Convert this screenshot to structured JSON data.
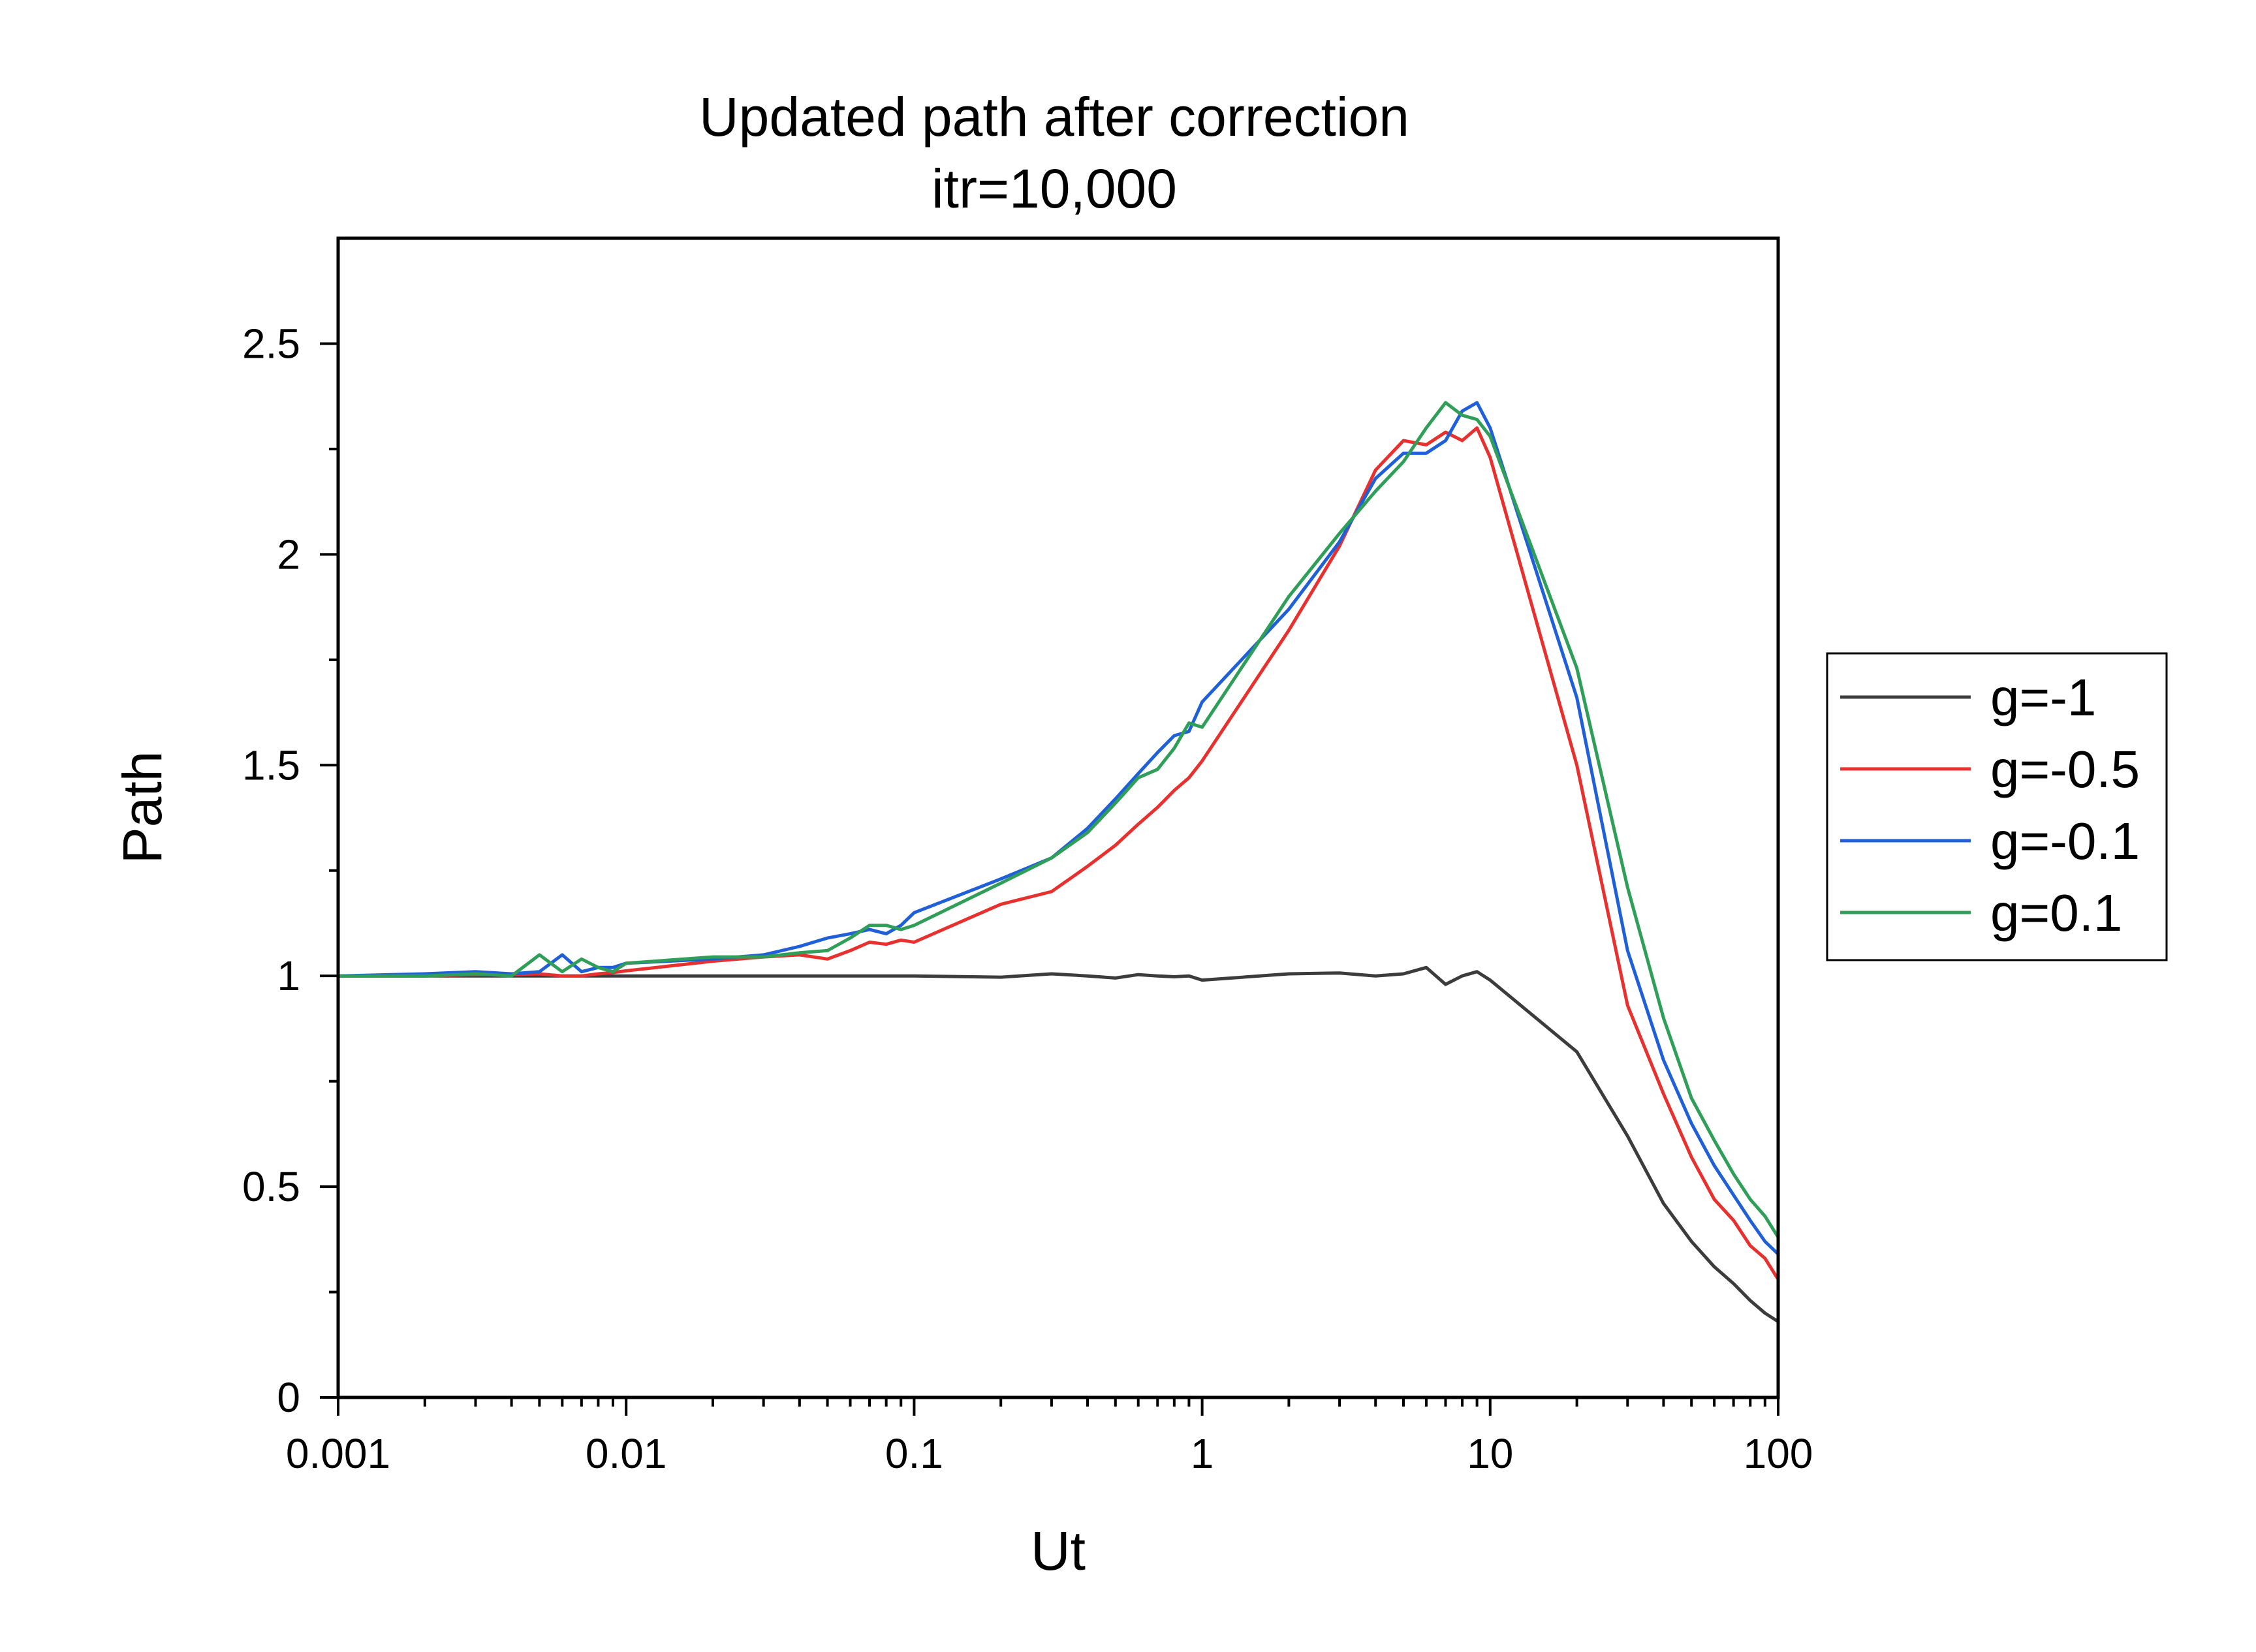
{
  "chart_data": {
    "type": "line",
    "title": "Updated path after correction",
    "subtitle": "itr=10,000",
    "xlabel": "Ut",
    "ylabel": "Path",
    "xscale": "log",
    "xlim": [
      0.001,
      100
    ],
    "ylim": [
      0,
      2.75
    ],
    "x_ticks": [
      0.001,
      0.01,
      0.1,
      1,
      10,
      100
    ],
    "x_tick_labels": [
      "0.001",
      "0.01",
      "0.1",
      "1",
      "10",
      "100"
    ],
    "y_ticks": [
      0,
      0.5,
      1,
      1.5,
      2,
      2.5
    ],
    "y_tick_labels": [
      "0",
      "0.5",
      "1",
      "1.5",
      "2",
      "2.5"
    ],
    "grid": false,
    "legend_position": "right",
    "series": [
      {
        "name": "g=-1",
        "color": "#3c3c3c",
        "x": [
          0.001,
          0.002,
          0.003,
          0.004,
          0.005,
          0.006,
          0.007,
          0.008,
          0.009,
          0.01,
          0.02,
          0.03,
          0.04,
          0.05,
          0.06,
          0.07,
          0.08,
          0.09,
          0.1,
          0.2,
          0.3,
          0.4,
          0.5,
          0.6,
          0.7,
          0.8,
          0.9,
          1,
          2,
          3,
          4,
          5,
          6,
          7,
          8,
          9,
          10,
          20,
          30,
          40,
          50,
          60,
          70,
          80,
          90,
          100
        ],
        "y": [
          1.0,
          1.0,
          1.0,
          1.0,
          1.0,
          1.0,
          1.0,
          1.0,
          1.0,
          1.0,
          1.0,
          1.0,
          1.0,
          1.0,
          1.0,
          1.0,
          1.0,
          1.0,
          1.0,
          0.997,
          1.005,
          1.0,
          0.995,
          1.003,
          1.0,
          0.998,
          1.0,
          0.99,
          1.005,
          1.007,
          1.0,
          1.005,
          1.02,
          0.98,
          1.0,
          1.01,
          0.99,
          0.82,
          0.62,
          0.46,
          0.37,
          0.31,
          0.27,
          0.23,
          0.2,
          0.18
        ]
      },
      {
        "name": "g=-0.5",
        "color": "#e8312f",
        "x": [
          0.001,
          0.002,
          0.003,
          0.004,
          0.005,
          0.006,
          0.007,
          0.008,
          0.009,
          0.01,
          0.02,
          0.03,
          0.04,
          0.05,
          0.06,
          0.07,
          0.08,
          0.09,
          0.1,
          0.2,
          0.3,
          0.4,
          0.5,
          0.6,
          0.7,
          0.8,
          0.9,
          1,
          2,
          3,
          4,
          5,
          6,
          7,
          8,
          9,
          10,
          20,
          30,
          40,
          50,
          60,
          70,
          80,
          90,
          100
        ],
        "y": [
          1.0,
          1.0,
          1.003,
          1.003,
          1.005,
          1.0,
          1.0,
          1.005,
          1.008,
          1.012,
          1.035,
          1.045,
          1.05,
          1.04,
          1.06,
          1.08,
          1.075,
          1.085,
          1.08,
          1.17,
          1.2,
          1.26,
          1.31,
          1.36,
          1.4,
          1.44,
          1.47,
          1.51,
          1.82,
          2.02,
          2.2,
          2.27,
          2.26,
          2.29,
          2.27,
          2.3,
          2.23,
          1.5,
          0.93,
          0.72,
          0.57,
          0.47,
          0.42,
          0.36,
          0.33,
          0.28
        ]
      },
      {
        "name": "g=-0.1",
        "color": "#1f60d9",
        "x": [
          0.001,
          0.002,
          0.003,
          0.004,
          0.005,
          0.006,
          0.007,
          0.008,
          0.009,
          0.01,
          0.02,
          0.03,
          0.04,
          0.05,
          0.06,
          0.07,
          0.08,
          0.09,
          0.1,
          0.2,
          0.3,
          0.4,
          0.5,
          0.6,
          0.7,
          0.8,
          0.9,
          1,
          2,
          3,
          4,
          5,
          6,
          7,
          8,
          9,
          10,
          20,
          30,
          40,
          50,
          60,
          70,
          80,
          90,
          100
        ],
        "y": [
          1.0,
          1.005,
          1.01,
          1.005,
          1.01,
          1.05,
          1.01,
          1.02,
          1.02,
          1.03,
          1.04,
          1.05,
          1.07,
          1.09,
          1.1,
          1.11,
          1.1,
          1.12,
          1.15,
          1.23,
          1.28,
          1.35,
          1.42,
          1.48,
          1.53,
          1.57,
          1.58,
          1.65,
          1.87,
          2.03,
          2.18,
          2.24,
          2.24,
          2.27,
          2.34,
          2.36,
          2.3,
          1.66,
          1.06,
          0.8,
          0.65,
          0.55,
          0.48,
          0.42,
          0.37,
          0.34
        ]
      },
      {
        "name": "g=0.1",
        "color": "#2e9e58",
        "x": [
          0.001,
          0.002,
          0.003,
          0.004,
          0.005,
          0.006,
          0.007,
          0.008,
          0.009,
          0.01,
          0.02,
          0.03,
          0.04,
          0.05,
          0.06,
          0.07,
          0.08,
          0.09,
          0.1,
          0.2,
          0.3,
          0.4,
          0.5,
          0.6,
          0.7,
          0.8,
          0.9,
          1,
          2,
          3,
          4,
          5,
          6,
          7,
          8,
          9,
          10,
          20,
          30,
          40,
          50,
          60,
          70,
          80,
          90,
          100
        ],
        "y": [
          1.0,
          1.0,
          1.005,
          1.0,
          1.05,
          1.01,
          1.04,
          1.02,
          1.01,
          1.03,
          1.045,
          1.045,
          1.055,
          1.06,
          1.09,
          1.12,
          1.12,
          1.11,
          1.12,
          1.22,
          1.28,
          1.34,
          1.41,
          1.47,
          1.49,
          1.54,
          1.6,
          1.59,
          1.9,
          2.05,
          2.15,
          2.22,
          2.3,
          2.36,
          2.33,
          2.32,
          2.28,
          1.73,
          1.21,
          0.9,
          0.71,
          0.61,
          0.53,
          0.47,
          0.43,
          0.38
        ]
      }
    ]
  }
}
